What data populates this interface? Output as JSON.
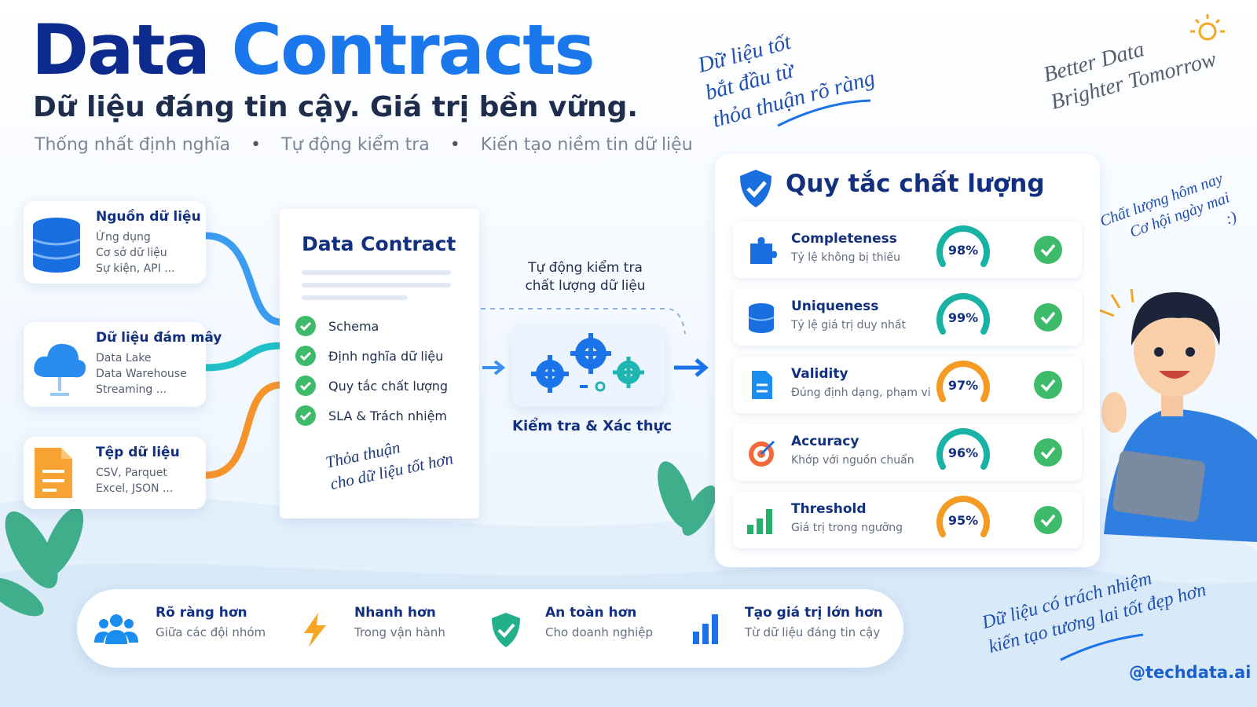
{
  "header": {
    "title_part1": "Data",
    "title_part2": "Contracts",
    "subtitle": "Dữ liệu đáng tin cậy. Giá trị bền vững.",
    "taglines": [
      "Thống nhất định nghĩa",
      "Tự động kiểm tra",
      "Kiến tạo niềm tin dữ liệu"
    ]
  },
  "notes": {
    "top": [
      "Dữ liệu tốt",
      "bắt đầu từ",
      "thỏa thuận rõ ràng"
    ],
    "top_right": [
      "Better Data",
      "Brighter Tomorrow"
    ],
    "side": [
      "Chất lượng hôm nay",
      "Cơ hội ngày mai",
      ":)"
    ],
    "bottom_right": [
      "Dữ liệu có trách nhiệm",
      "kiến tạo tương lai tốt đẹp hơn"
    ],
    "handle": "@techdata.ai"
  },
  "sources": [
    {
      "title": "Nguồn dữ liệu",
      "items": [
        "Ứng dụng",
        "Cơ sở dữ liệu",
        "Sự kiện, API ..."
      ]
    },
    {
      "title": "Dữ liệu đám mây",
      "items": [
        "Data Lake",
        "Data Warehouse",
        "Streaming ..."
      ]
    },
    {
      "title": "Tệp dữ liệu",
      "items": [
        "CSV, Parquet",
        "Excel, JSON ..."
      ]
    }
  ],
  "contract": {
    "title": "Data Contract",
    "checks": [
      "Schema",
      "Định nghĩa dữ liệu",
      "Quy tắc chất lượng",
      "SLA & Trách nhiệm"
    ],
    "note": [
      "Thỏa thuận",
      "cho dữ liệu tốt hơn"
    ]
  },
  "validation": {
    "caption": [
      "Tự động kiểm tra",
      "chất lượng dữ liệu"
    ],
    "label": "Kiểm tra & Xác thực"
  },
  "quality": {
    "title": "Quy tắc chất lượng",
    "rules": [
      {
        "name": "Completeness",
        "desc": "Tỷ lệ không bị thiếu",
        "score": "98%",
        "color": "#18b3a4"
      },
      {
        "name": "Uniqueness",
        "desc": "Tỷ lệ giá trị duy nhất",
        "score": "99%",
        "color": "#18b3a4"
      },
      {
        "name": "Validity",
        "desc": "Đúng định dạng, phạm vi",
        "score": "97%",
        "color": "#f59a23"
      },
      {
        "name": "Accuracy",
        "desc": "Khớp với nguồn chuẩn",
        "score": "96%",
        "color": "#18b3a4"
      },
      {
        "name": "Threshold",
        "desc": "Giá trị trong ngưỡng",
        "score": "95%",
        "color": "#f59a23"
      }
    ]
  },
  "benefits": [
    {
      "title": "Rõ ràng hơn",
      "desc": "Giữa các đội nhóm"
    },
    {
      "title": "Nhanh hơn",
      "desc": "Trong vận hành"
    },
    {
      "title": "An toàn hơn",
      "desc": "Cho doanh nghiệp"
    },
    {
      "title": "Tạo giá trị lớn hơn",
      "desc": "Từ dữ liệu đáng tin cậy"
    }
  ]
}
